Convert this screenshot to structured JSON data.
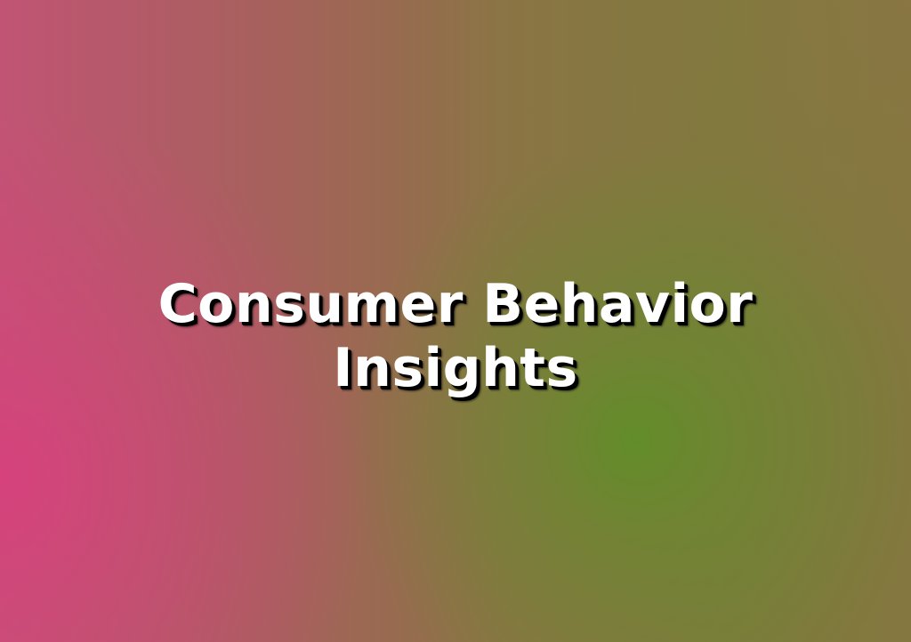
{
  "slide": {
    "title_line_1": "Consumer Behavior",
    "title_line_2": "Insights",
    "colors": {
      "text": "#ffffff",
      "text_shadow": "#000000",
      "glow_pink": "#d7417d",
      "glow_green": "#608e28",
      "base": "#8b7445"
    }
  }
}
